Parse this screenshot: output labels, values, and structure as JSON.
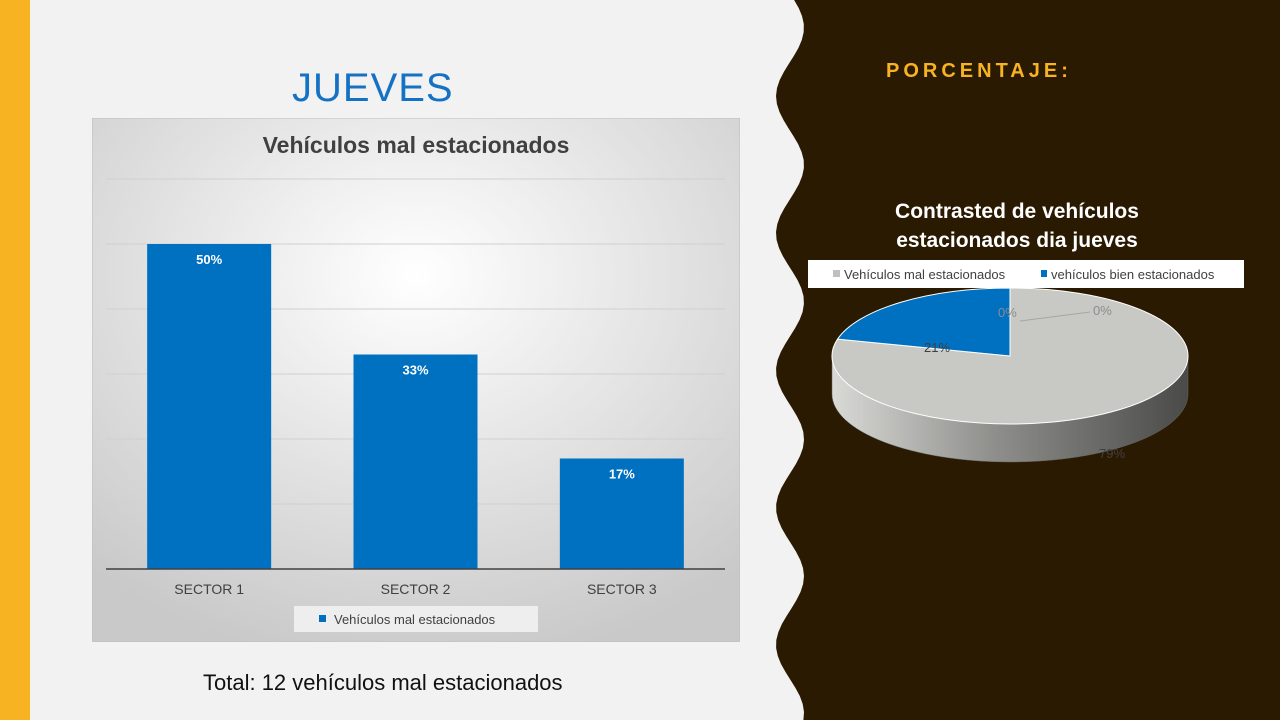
{
  "slide": {
    "title": "JUEVES",
    "right_heading": "PORCENTAJE:",
    "footer_total": "Total: 12 vehículos mal estacionados"
  },
  "colors": {
    "accent_yellow": "#f8b323",
    "dark_panel": "#2b1a02",
    "title_blue": "#1571c3",
    "bar_blue": "#0070c0",
    "pie_gray": "#c8c8c4"
  },
  "chart_data": [
    {
      "type": "bar",
      "title": "Vehículos mal estacionados",
      "categories": [
        "SECTOR 1",
        "SECTOR 2",
        "SECTOR 3"
      ],
      "series": [
        {
          "name": "Vehículos mal estacionados",
          "values": [
            50,
            33,
            17
          ],
          "labels": [
            "50%",
            "33%",
            "17%"
          ]
        }
      ],
      "ylim": [
        0,
        60
      ],
      "grid": true,
      "legend": "bottom"
    },
    {
      "type": "pie",
      "title_lines": [
        "Contrasted de vehículos",
        "estacionados dia jueves"
      ],
      "legend": "top",
      "legend_entries": [
        {
          "name": "Vehículos mal estacionados",
          "color": "#c8c8c4"
        },
        {
          "name": "vehículos bien estacionados",
          "color": "#0070c0"
        }
      ],
      "slices": [
        {
          "label": "79%",
          "value": 79,
          "color": "#c8c8c4"
        },
        {
          "label": "21%",
          "value": 21,
          "color": "#0070c0"
        },
        {
          "label": "0%",
          "value": 0,
          "color": "#c8c8c4"
        },
        {
          "label": "0%",
          "value": 0,
          "color": "#0070c0"
        }
      ]
    }
  ]
}
